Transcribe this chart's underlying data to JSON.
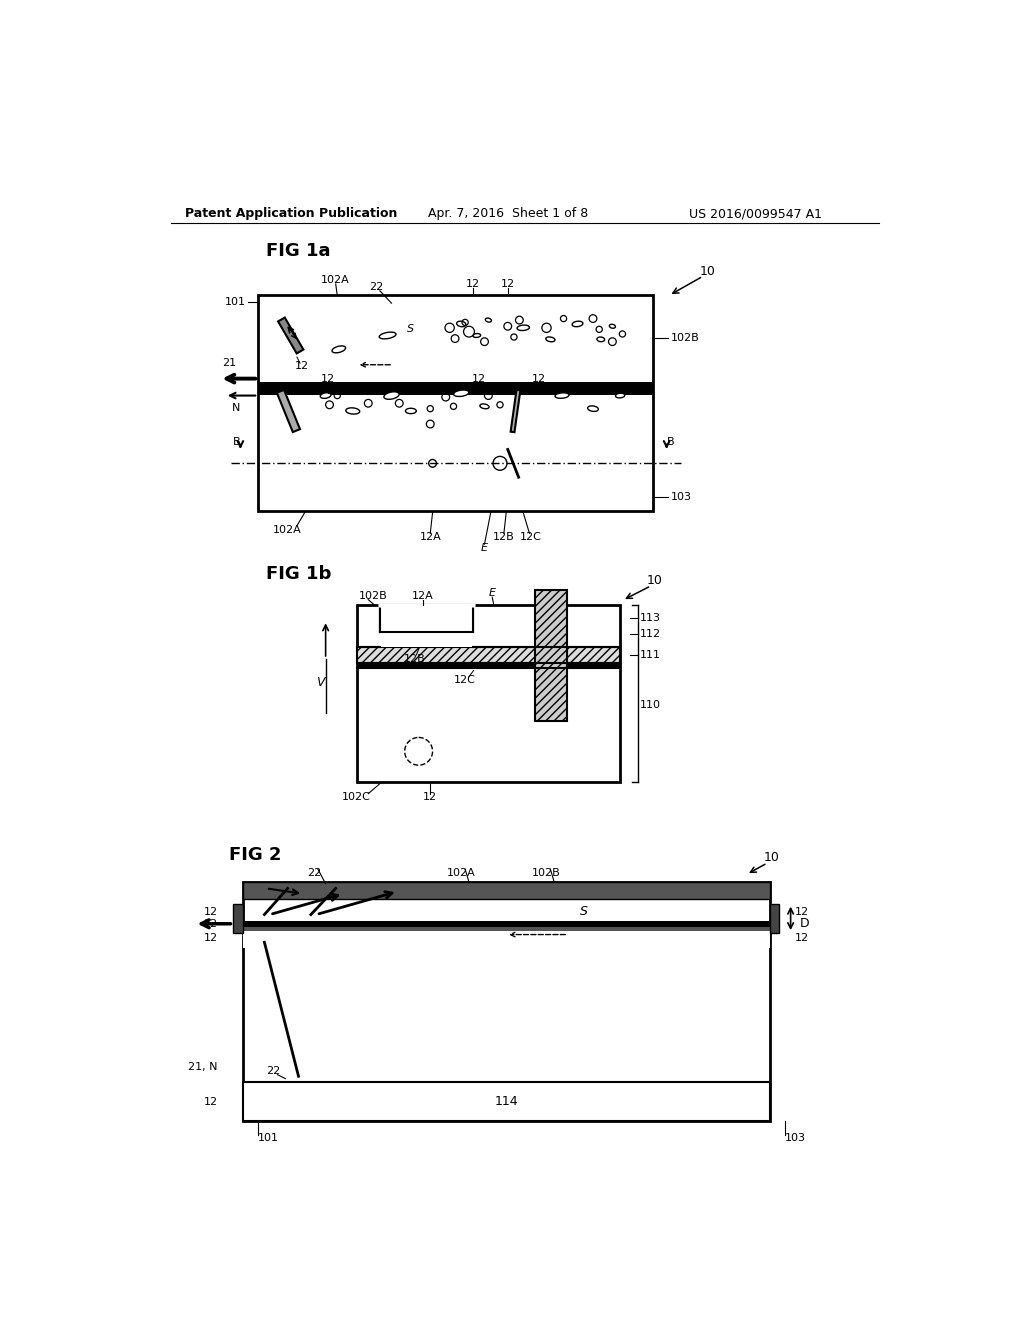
{
  "bg_color": "#ffffff",
  "header_left": "Patent Application Publication",
  "header_mid": "Apr. 7, 2016  Sheet 1 of 8",
  "header_right": "US 2016/0099547 A1"
}
